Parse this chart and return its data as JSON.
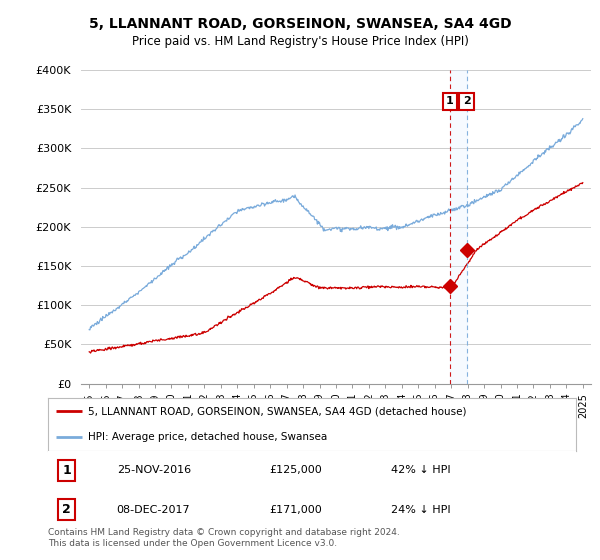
{
  "title": "5, LLANNANT ROAD, GORSEINON, SWANSEA, SA4 4GD",
  "subtitle": "Price paid vs. HM Land Registry's House Price Index (HPI)",
  "legend_line1": "5, LLANNANT ROAD, GORSEINON, SWANSEA, SA4 4GD (detached house)",
  "legend_line2": "HPI: Average price, detached house, Swansea",
  "footnote": "Contains HM Land Registry data © Crown copyright and database right 2024.\nThis data is licensed under the Open Government Licence v3.0.",
  "sale1_date": "25-NOV-2016",
  "sale1_price": "£125,000",
  "sale1_hpi": "42% ↓ HPI",
  "sale2_date": "08-DEC-2017",
  "sale2_price": "£171,000",
  "sale2_hpi": "24% ↓ HPI",
  "sale1_year": 2016.92,
  "sale1_value": 125000,
  "sale2_year": 2017.94,
  "sale2_value": 171000,
  "red_line_color": "#cc0000",
  "blue_line_color": "#7aabdb",
  "shade_color": "#ddeeff",
  "sale_marker_color": "#cc0000",
  "vline_color": "#cc0000",
  "box_color": "#cc0000",
  "background_color": "#ffffff",
  "grid_color": "#cccccc",
  "ylim": [
    0,
    400000
  ],
  "xlim_start": 1994.5,
  "xlim_end": 2025.5
}
